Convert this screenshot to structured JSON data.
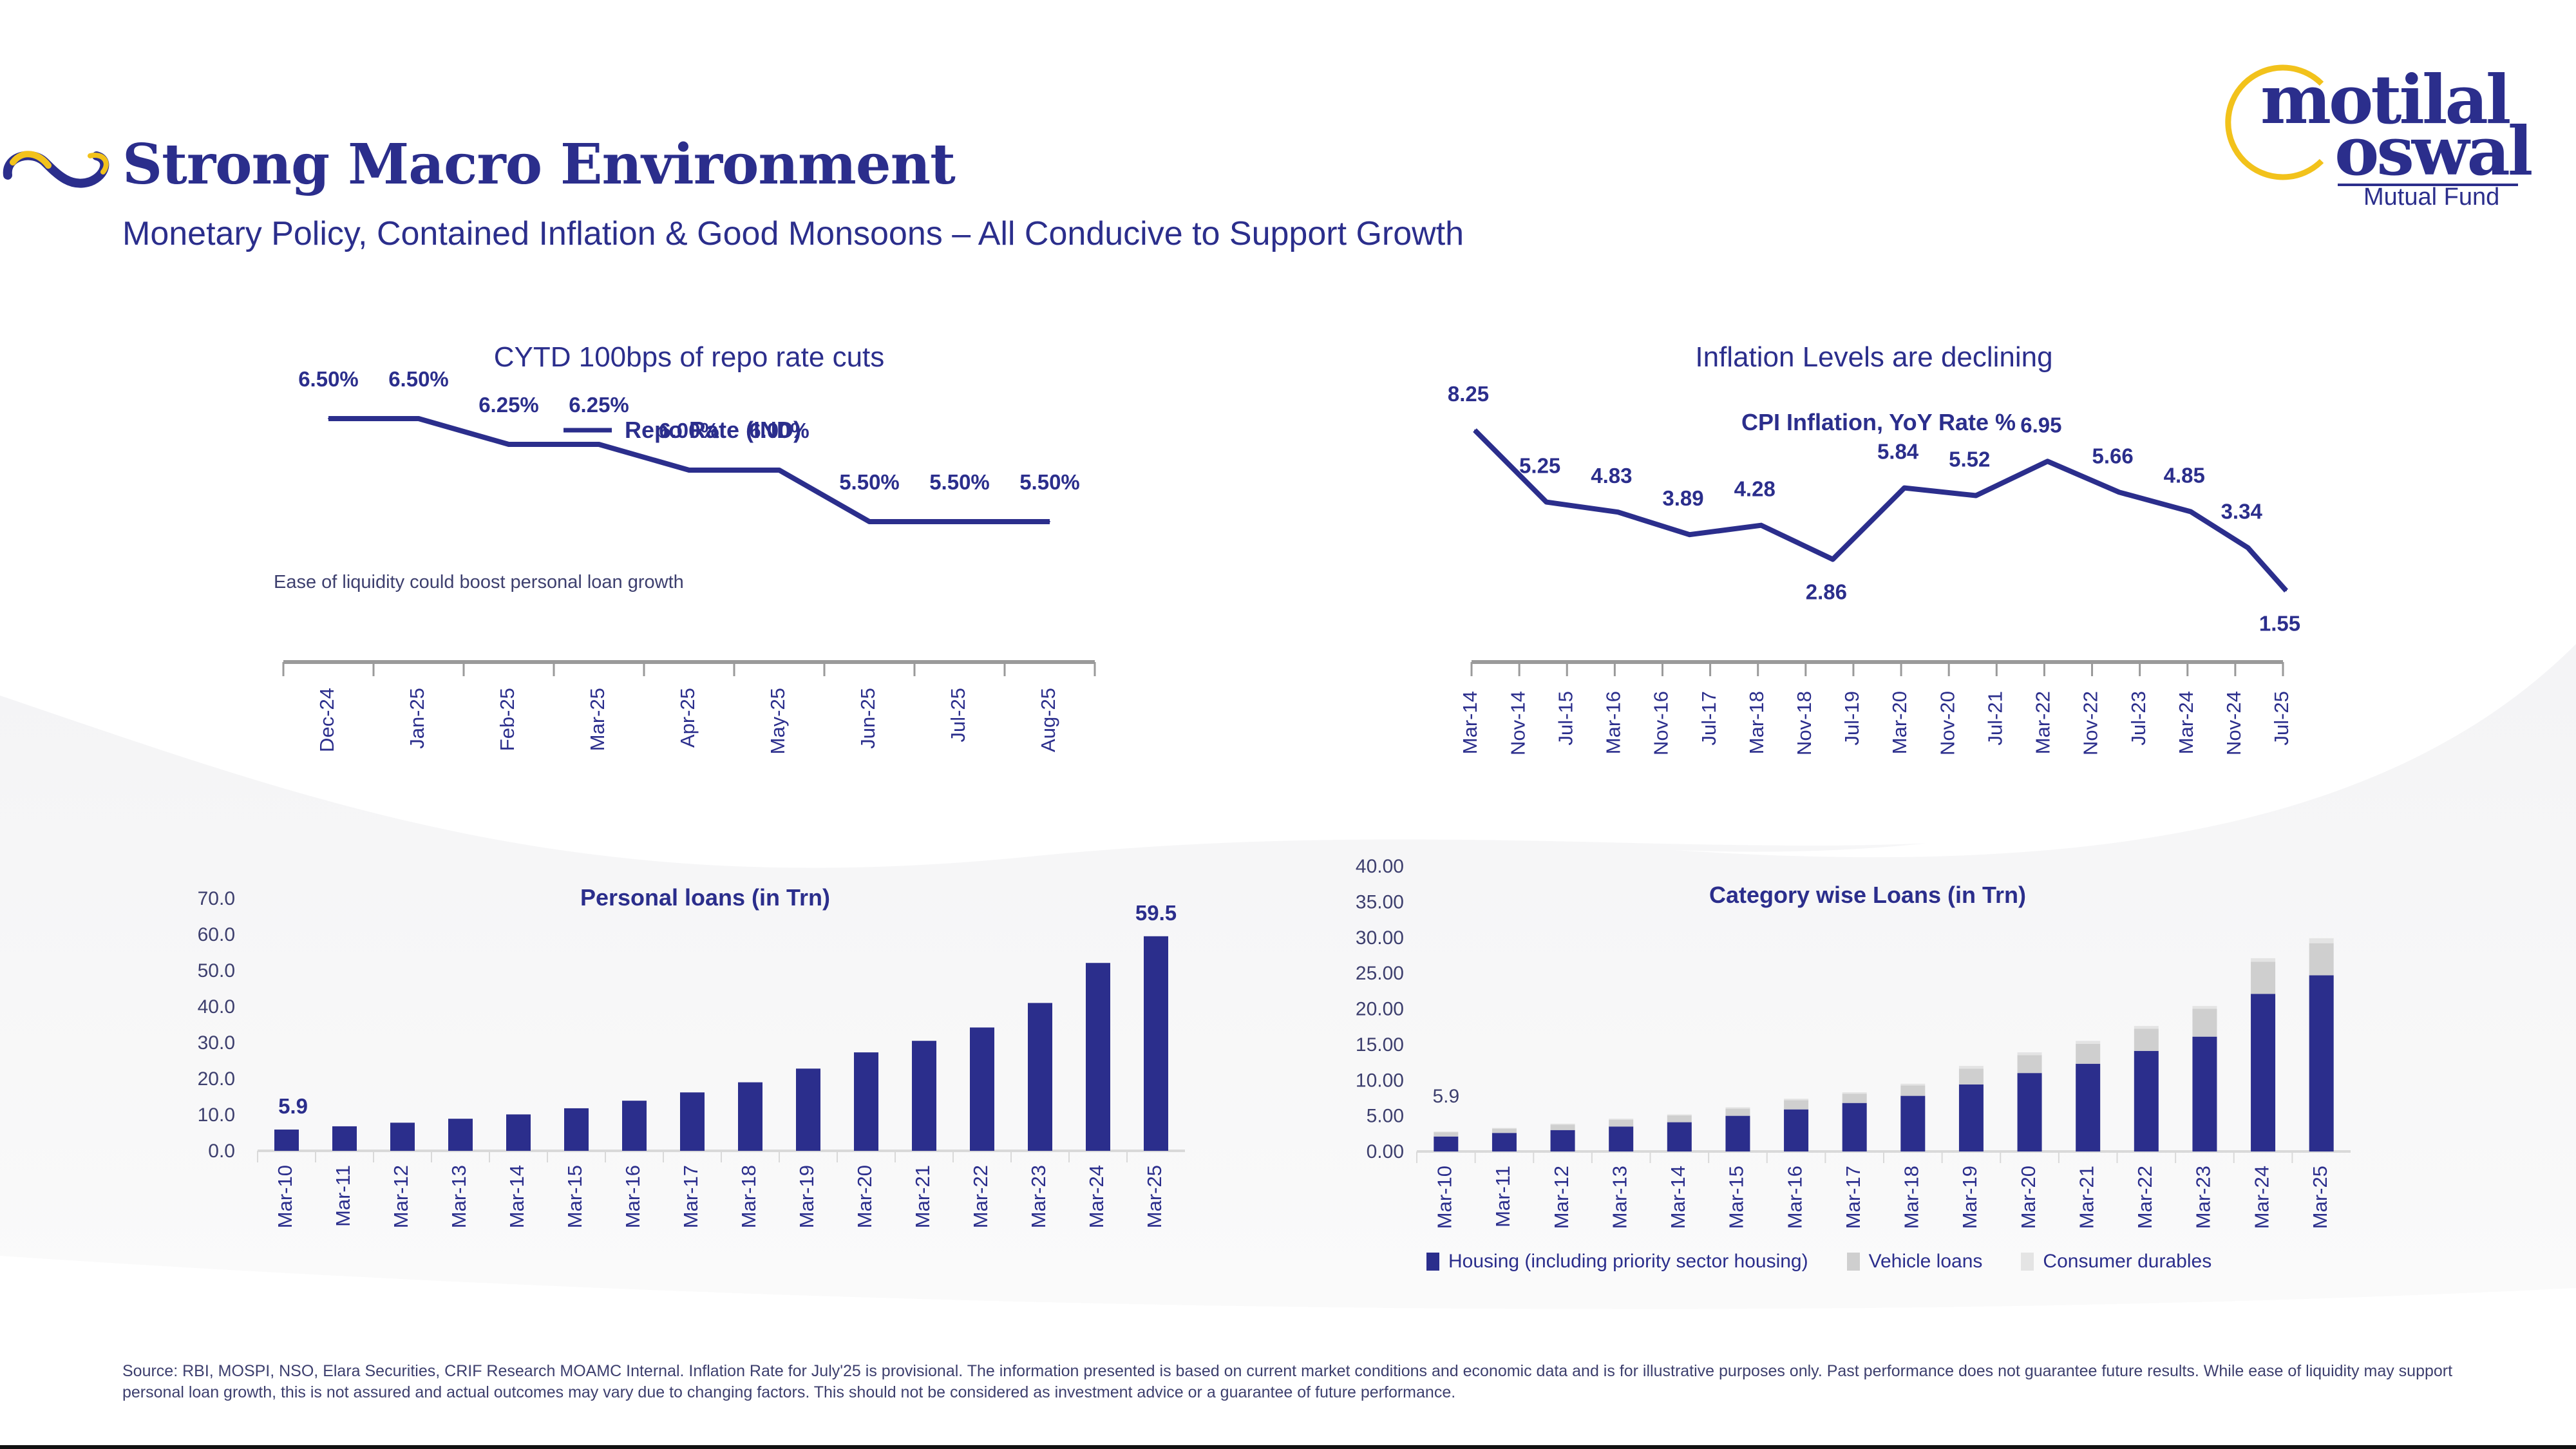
{
  "header": {
    "title": "Strong Macro Environment",
    "subtitle": "Monetary Policy, Contained Inflation & Good Monsoons – All Conducive to Support Growth",
    "logo_icon": "infinity-icon"
  },
  "brand": {
    "line1": "motilal",
    "line2": "oswal",
    "tagline": "Mutual Fund",
    "colors": {
      "primary": "#2b2e8c",
      "accent": "#f2c21b"
    }
  },
  "sections": {
    "repo_title": "CYTD 100bps of repo rate cuts",
    "inflation_title": "Inflation Levels are declining"
  },
  "footer": {
    "source": "Source: RBI, MOSPI, NSO, Elara Securities, CRIF Research MOAMC Internal. Inflation Rate for July'25 is provisional. The information presented is based on current market conditions and economic data and is for illustrative purposes only. Past performance does not guarantee future results. While ease of liquidity may support personal loan growth, this is not assured and actual outcomes may vary due to changing factors. This should not be considered as investment advice or a guarantee of future performance."
  },
  "chart_data": [
    {
      "id": "repo",
      "type": "line",
      "title": "",
      "legend": [
        "Repo Rate (IND)"
      ],
      "legend_position": "top",
      "annotation": "Ease of liquidity could boost personal loan growth",
      "categories": [
        "Dec-24",
        "Jan-25",
        "Feb-25",
        "Mar-25",
        "Apr-25",
        "May-25",
        "Jun-25",
        "Jul-25",
        "Aug-25"
      ],
      "values": [
        6.5,
        6.5,
        6.25,
        6.25,
        6.0,
        6.0,
        5.5,
        5.5,
        5.5
      ],
      "labels": [
        "6.50%",
        "6.50%",
        "6.25%",
        "6.25%",
        "6.00%",
        "6.00%",
        "5.50%",
        "5.50%",
        "5.50%"
      ],
      "ylim": [
        5.0,
        7.0
      ],
      "grid": false,
      "color": "#2b2e8c"
    },
    {
      "id": "cpi",
      "type": "line",
      "title": "CPI Inflation, YoY Rate %",
      "categories": [
        "Mar-14",
        "Nov-14",
        "Jul-15",
        "Mar-16",
        "Nov-16",
        "Jul-17",
        "Mar-18",
        "Nov-18",
        "Jul-19",
        "Mar-20",
        "Nov-20",
        "Jul-21",
        "Mar-22",
        "Nov-22",
        "Jul-23",
        "Mar-24",
        "Nov-24",
        "Jul-25"
      ],
      "points": [
        {
          "x": 0,
          "value": 8.25,
          "label": "8.25"
        },
        {
          "x": 1.5,
          "value": 5.25,
          "label": "5.25"
        },
        {
          "x": 3,
          "value": 4.83,
          "label": "4.83"
        },
        {
          "x": 4.5,
          "value": 3.89,
          "label": "3.89"
        },
        {
          "x": 6,
          "value": 4.28,
          "label": "4.28"
        },
        {
          "x": 7.5,
          "value": 2.86,
          "label": "2.86"
        },
        {
          "x": 9,
          "value": 5.84,
          "label": "5.84"
        },
        {
          "x": 10.5,
          "value": 5.52,
          "label": "5.52"
        },
        {
          "x": 12,
          "value": 6.95,
          "label": "6.95"
        },
        {
          "x": 13.5,
          "value": 5.66,
          "label": "5.66"
        },
        {
          "x": 15,
          "value": 4.85,
          "label": "4.85"
        },
        {
          "x": 16.2,
          "value": 3.34,
          "label": "3.34"
        },
        {
          "x": 17,
          "value": 1.55,
          "label": "1.55"
        }
      ],
      "ylim": [
        0,
        9
      ],
      "grid": false,
      "color": "#2b2e8c"
    },
    {
      "id": "personal",
      "type": "bar",
      "title": "Personal loans (in Trn)",
      "categories": [
        "Mar-10",
        "Mar-11",
        "Mar-12",
        "Mar-13",
        "Mar-14",
        "Mar-15",
        "Mar-16",
        "Mar-17",
        "Mar-18",
        "Mar-19",
        "Mar-20",
        "Mar-21",
        "Mar-22",
        "Mar-23",
        "Mar-24",
        "Mar-25"
      ],
      "values": [
        5.9,
        6.8,
        7.8,
        8.9,
        10.1,
        11.8,
        13.9,
        16.2,
        19.0,
        22.8,
        27.3,
        30.5,
        34.2,
        41.0,
        52.1,
        59.5
      ],
      "data_labels": {
        "0": "5.9",
        "15": "59.5"
      },
      "yticks": [
        "0.0",
        "10.0",
        "20.0",
        "30.0",
        "40.0",
        "50.0",
        "60.0",
        "70.0"
      ],
      "ylim": [
        0,
        70
      ],
      "grid": false,
      "color": "#2b2e8c"
    },
    {
      "id": "category",
      "type": "bar",
      "stacked": true,
      "title": "Category wise Loans (in Trn)",
      "categories": [
        "Mar-10",
        "Mar-11",
        "Mar-12",
        "Mar-13",
        "Mar-14",
        "Mar-15",
        "Mar-16",
        "Mar-17",
        "Mar-18",
        "Mar-19",
        "Mar-20",
        "Mar-21",
        "Mar-22",
        "Mar-23",
        "Mar-24",
        "Mar-25"
      ],
      "series": [
        {
          "name": "Housing (including priority sector housing)",
          "color": "#2b2e8c",
          "values": [
            2.1,
            2.6,
            3.0,
            3.5,
            4.1,
            5.0,
            5.9,
            6.8,
            7.8,
            9.4,
            11.0,
            12.3,
            14.1,
            16.1,
            22.1,
            24.7
          ]
        },
        {
          "name": "Vehicle loans",
          "color": "#cfcfcf",
          "values": [
            0.6,
            0.6,
            0.75,
            0.95,
            0.95,
            1.0,
            1.3,
            1.3,
            1.45,
            2.2,
            2.5,
            2.8,
            3.1,
            3.9,
            4.5,
            4.5
          ]
        },
        {
          "name": "Consumer durables",
          "color": "#e4e4e4",
          "values": [
            0.1,
            0.1,
            0.15,
            0.15,
            0.15,
            0.2,
            0.2,
            0.2,
            0.25,
            0.4,
            0.4,
            0.4,
            0.4,
            0.4,
            0.5,
            0.7
          ]
        }
      ],
      "data_labels": {
        "0": "5.9"
      },
      "yticks": [
        "0.00",
        "5.00",
        "10.00",
        "15.00",
        "20.00",
        "25.00",
        "30.00",
        "35.00",
        "40.00"
      ],
      "ylim": [
        0,
        40
      ],
      "legend_position": "bottom",
      "grid": false
    }
  ]
}
